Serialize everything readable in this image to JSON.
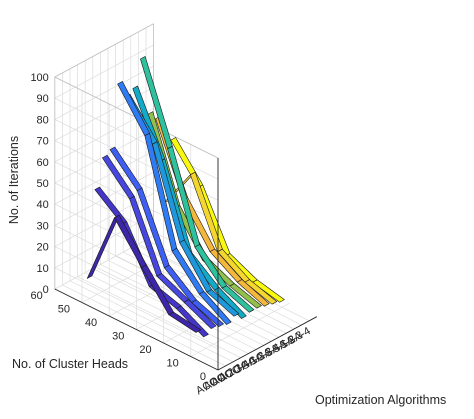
{
  "chart_data": {
    "type": "ribbon3d",
    "zlabel": "No. of Iterations",
    "ylabel": "No. of Cluster Heads",
    "xlabel": "Optimization Algorithms",
    "zlim": [
      0,
      100
    ],
    "ylim": [
      0,
      60
    ],
    "z_ticks": [
      "0",
      "10",
      "20",
      "30",
      "40",
      "50",
      "60",
      "70",
      "80",
      "90",
      "100"
    ],
    "y_ticks": [
      "0",
      "10",
      "20",
      "30",
      "40",
      "50",
      "60"
    ],
    "x_ticks": [
      "ACO-1",
      "ACO-2",
      "ACO-3",
      "ACO-4",
      "GA-1",
      "GA-2",
      "GA-3",
      "GA-4",
      "SA-1",
      "SA-2",
      "SA-3",
      "SA-4"
    ],
    "grid": true,
    "y_points": [
      10,
      20,
      30,
      40,
      50
    ],
    "series": [
      {
        "color": "#3e26a8",
        "values": [
          10,
          12,
          28,
          45,
          10
        ]
      },
      {
        "color": "#4436c8",
        "values": [
          6,
          13,
          17,
          40,
          50
        ]
      },
      {
        "color": "#4747e0",
        "values": [
          8,
          14,
          20,
          50,
          63
        ]
      },
      {
        "color": "#3f5ff2",
        "values": [
          7,
          12,
          22,
          52,
          65
        ]
      },
      {
        "color": "#2e7bf3",
        "values": [
          6,
          14,
          28,
          76,
          94
        ]
      },
      {
        "color": "#1f97dd",
        "values": [
          8,
          13,
          30,
          70,
          86
        ]
      },
      {
        "color": "#13aac8",
        "values": [
          5,
          12,
          22,
          60,
          88
        ]
      },
      {
        "color": "#2fc09d",
        "values": [
          6,
          11,
          24,
          64,
          100
        ]
      },
      {
        "color": "#91c14c",
        "values": [
          6,
          10,
          16,
          34,
          72
        ]
      },
      {
        "color": "#f3b73b",
        "values": [
          5,
          10,
          18,
          36,
          68
        ]
      },
      {
        "color": "#f5d630",
        "values": [
          4,
          8,
          16,
          46,
          26
        ]
      },
      {
        "color": "#f9f90f",
        "values": [
          3,
          6,
          12,
          38,
          54
        ]
      }
    ]
  }
}
